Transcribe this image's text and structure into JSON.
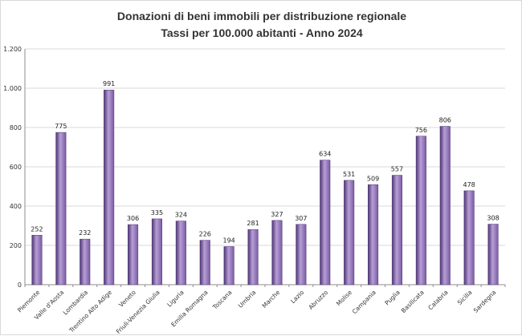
{
  "chart_data": {
    "type": "bar",
    "title": "Donazioni di beni immobili per distribuzione regionale",
    "subtitle": "Tassi per 100.000 abitanti - Anno 2024",
    "xlabel": "",
    "ylabel": "",
    "ylim": [
      0,
      1200
    ],
    "yticks": [
      {
        "value": 0,
        "label": "0"
      },
      {
        "value": 200,
        "label": "200"
      },
      {
        "value": 400,
        "label": "400"
      },
      {
        "value": 600,
        "label": "600"
      },
      {
        "value": 800,
        "label": "800"
      },
      {
        "value": 1000,
        "label": "1.000"
      },
      {
        "value": 1200,
        "label": "1.200"
      }
    ],
    "grid": true,
    "legend": "none",
    "categories": [
      "Piemonte",
      "Valle d'Aosta",
      "Lombardia",
      "Trentino Alto Adige",
      "Veneto",
      "Friuli-Venezia Giulia",
      "Liguria",
      "Emilia Romagna",
      "Toscana",
      "Umbria",
      "Marche",
      "Lazio",
      "Abruzzo",
      "Molise",
      "Campania",
      "Puglia",
      "Basilicata",
      "Calabria",
      "Sicilia",
      "Sardegna"
    ],
    "values": [
      252,
      775,
      232,
      991,
      306,
      335,
      324,
      226,
      194,
      281,
      327,
      307,
      634,
      531,
      509,
      557,
      756,
      806,
      478,
      308
    ],
    "bar_color": "#7a5aa3",
    "bar_color_light": "#b79fd6",
    "bar_color_dark": "#4e3575"
  }
}
